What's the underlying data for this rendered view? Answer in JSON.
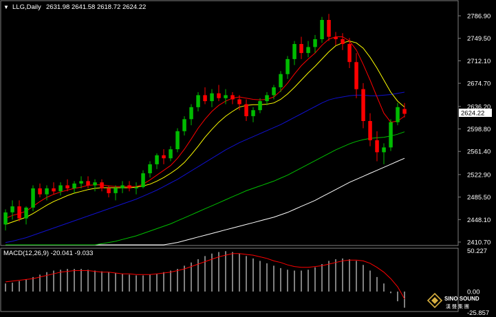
{
  "header": {
    "triangle": "▼",
    "symbol": "LLG,Daily",
    "ohlc": "2631.98 2641.58 2618.72 2624.22"
  },
  "price_axis": {
    "labels": [
      "2786.90",
      "2749.50",
      "2712.10",
      "2674.70",
      "2636.20",
      "2598.80",
      "2561.40",
      "2522.90",
      "2485.50",
      "2448.10",
      "2410.70"
    ],
    "current": "2624.22"
  },
  "macd": {
    "title": "MACD(12,26,9) -20.041 -9.033",
    "labels": [
      "50.227",
      "0.00",
      "-25.857"
    ]
  },
  "logo": {
    "line1": "SINO SOUND",
    "line2": "漢 聲 集 團"
  },
  "colors": {
    "background": "#000000",
    "bull": "#00bb00",
    "bear": "#ff0000",
    "ma_fast": "#ff0000",
    "ma_mid": "#ffff00",
    "ma_blue": "#1010d0",
    "ma_green": "#00c000",
    "ma_white": "#ffffff",
    "macd_hist": "#ffffff",
    "macd_signal": "#ff0000"
  },
  "chart_data": {
    "type": "candlestick",
    "title": "LLG,Daily",
    "ylim": [
      2400,
      2800
    ],
    "candles": [
      {
        "o": 2440,
        "h": 2465,
        "l": 2430,
        "c": 2460
      },
      {
        "o": 2460,
        "h": 2480,
        "l": 2448,
        "c": 2470
      },
      {
        "o": 2470,
        "h": 2480,
        "l": 2445,
        "c": 2450
      },
      {
        "o": 2450,
        "h": 2470,
        "l": 2440,
        "c": 2468
      },
      {
        "o": 2468,
        "h": 2505,
        "l": 2462,
        "c": 2500
      },
      {
        "o": 2500,
        "h": 2508,
        "l": 2485,
        "c": 2490
      },
      {
        "o": 2490,
        "h": 2505,
        "l": 2480,
        "c": 2500
      },
      {
        "o": 2500,
        "h": 2510,
        "l": 2490,
        "c": 2495
      },
      {
        "o": 2495,
        "h": 2510,
        "l": 2488,
        "c": 2505
      },
      {
        "o": 2505,
        "h": 2515,
        "l": 2495,
        "c": 2500
      },
      {
        "o": 2500,
        "h": 2512,
        "l": 2492,
        "c": 2508
      },
      {
        "o": 2508,
        "h": 2520,
        "l": 2500,
        "c": 2512
      },
      {
        "o": 2512,
        "h": 2520,
        "l": 2500,
        "c": 2505
      },
      {
        "o": 2505,
        "h": 2515,
        "l": 2495,
        "c": 2510
      },
      {
        "o": 2510,
        "h": 2515,
        "l": 2495,
        "c": 2500
      },
      {
        "o": 2500,
        "h": 2505,
        "l": 2485,
        "c": 2492
      },
      {
        "o": 2492,
        "h": 2505,
        "l": 2480,
        "c": 2500
      },
      {
        "o": 2500,
        "h": 2512,
        "l": 2492,
        "c": 2505
      },
      {
        "o": 2505,
        "h": 2512,
        "l": 2495,
        "c": 2500
      },
      {
        "o": 2500,
        "h": 2510,
        "l": 2490,
        "c": 2502
      },
      {
        "o": 2502,
        "h": 2530,
        "l": 2500,
        "c": 2525
      },
      {
        "o": 2525,
        "h": 2545,
        "l": 2518,
        "c": 2540
      },
      {
        "o": 2540,
        "h": 2558,
        "l": 2532,
        "c": 2555
      },
      {
        "o": 2555,
        "h": 2565,
        "l": 2540,
        "c": 2550
      },
      {
        "o": 2550,
        "h": 2570,
        "l": 2545,
        "c": 2565
      },
      {
        "o": 2565,
        "h": 2600,
        "l": 2560,
        "c": 2595
      },
      {
        "o": 2595,
        "h": 2620,
        "l": 2588,
        "c": 2615
      },
      {
        "o": 2615,
        "h": 2640,
        "l": 2605,
        "c": 2635
      },
      {
        "o": 2635,
        "h": 2660,
        "l": 2628,
        "c": 2655
      },
      {
        "o": 2655,
        "h": 2668,
        "l": 2640,
        "c": 2645
      },
      {
        "o": 2645,
        "h": 2665,
        "l": 2635,
        "c": 2658
      },
      {
        "o": 2658,
        "h": 2672,
        "l": 2645,
        "c": 2650
      },
      {
        "o": 2650,
        "h": 2665,
        "l": 2640,
        "c": 2655
      },
      {
        "o": 2655,
        "h": 2660,
        "l": 2640,
        "c": 2648
      },
      {
        "o": 2648,
        "h": 2655,
        "l": 2630,
        "c": 2640
      },
      {
        "o": 2640,
        "h": 2648,
        "l": 2612,
        "c": 2620
      },
      {
        "o": 2620,
        "h": 2635,
        "l": 2610,
        "c": 2630
      },
      {
        "o": 2630,
        "h": 2650,
        "l": 2625,
        "c": 2645
      },
      {
        "o": 2645,
        "h": 2660,
        "l": 2638,
        "c": 2655
      },
      {
        "o": 2655,
        "h": 2672,
        "l": 2648,
        "c": 2668
      },
      {
        "o": 2668,
        "h": 2695,
        "l": 2660,
        "c": 2690
      },
      {
        "o": 2690,
        "h": 2720,
        "l": 2682,
        "c": 2715
      },
      {
        "o": 2715,
        "h": 2745,
        "l": 2705,
        "c": 2740
      },
      {
        "o": 2740,
        "h": 2752,
        "l": 2715,
        "c": 2725
      },
      {
        "o": 2725,
        "h": 2745,
        "l": 2718,
        "c": 2735
      },
      {
        "o": 2735,
        "h": 2755,
        "l": 2725,
        "c": 2748
      },
      {
        "o": 2748,
        "h": 2785,
        "l": 2742,
        "c": 2780
      },
      {
        "o": 2780,
        "h": 2790,
        "l": 2745,
        "c": 2752
      },
      {
        "o": 2752,
        "h": 2760,
        "l": 2738,
        "c": 2748
      },
      {
        "o": 2748,
        "h": 2758,
        "l": 2730,
        "c": 2740
      },
      {
        "o": 2740,
        "h": 2750,
        "l": 2700,
        "c": 2710
      },
      {
        "o": 2710,
        "h": 2725,
        "l": 2650,
        "c": 2665
      },
      {
        "o": 2665,
        "h": 2675,
        "l": 2600,
        "c": 2612
      },
      {
        "o": 2612,
        "h": 2625,
        "l": 2570,
        "c": 2580
      },
      {
        "o": 2580,
        "h": 2595,
        "l": 2545,
        "c": 2560
      },
      {
        "o": 2560,
        "h": 2575,
        "l": 2540,
        "c": 2568
      },
      {
        "o": 2568,
        "h": 2615,
        "l": 2562,
        "c": 2610
      },
      {
        "o": 2610,
        "h": 2642,
        "l": 2605,
        "c": 2635
      },
      {
        "o": 2632,
        "h": 2642,
        "l": 2618,
        "c": 2624
      }
    ],
    "ma_fast": [
      2450,
      2455,
      2458,
      2462,
      2470,
      2478,
      2485,
      2490,
      2494,
      2497,
      2500,
      2502,
      2505,
      2506,
      2506,
      2504,
      2503,
      2503,
      2503,
      2503,
      2507,
      2514,
      2522,
      2530,
      2538,
      2550,
      2565,
      2582,
      2600,
      2615,
      2628,
      2638,
      2645,
      2650,
      2652,
      2650,
      2648,
      2647,
      2648,
      2652,
      2662,
      2675,
      2690,
      2704,
      2715,
      2725,
      2738,
      2748,
      2752,
      2752,
      2745,
      2730,
      2706,
      2680,
      2652,
      2625,
      2610,
      2612,
      2620
    ],
    "ma_mid": [
      2440,
      2444,
      2448,
      2452,
      2458,
      2465,
      2472,
      2478,
      2483,
      2488,
      2492,
      2495,
      2498,
      2500,
      2501,
      2501,
      2501,
      2501,
      2501,
      2502,
      2504,
      2507,
      2512,
      2518,
      2525,
      2533,
      2543,
      2556,
      2570,
      2585,
      2598,
      2610,
      2620,
      2628,
      2635,
      2638,
      2639,
      2639,
      2640,
      2642,
      2648,
      2657,
      2668,
      2680,
      2692,
      2703,
      2715,
      2727,
      2737,
      2742,
      2745,
      2742,
      2733,
      2718,
      2700,
      2680,
      2660,
      2645,
      2635
    ],
    "ma_blue": [
      2410,
      2412,
      2415,
      2418,
      2422,
      2426,
      2430,
      2434,
      2438,
      2442,
      2446,
      2450,
      2454,
      2458,
      2462,
      2466,
      2470,
      2474,
      2478,
      2482,
      2487,
      2492,
      2497,
      2503,
      2509,
      2515,
      2522,
      2529,
      2536,
      2543,
      2550,
      2557,
      2564,
      2570,
      2576,
      2581,
      2586,
      2591,
      2596,
      2601,
      2606,
      2612,
      2618,
      2624,
      2630,
      2636,
      2642,
      2647,
      2650,
      2652,
      2654,
      2655,
      2655,
      2654,
      2654,
      2655,
      2656,
      2658,
      2660
    ],
    "ma_green": [
      2380,
      2382,
      2384,
      2386,
      2388,
      2390,
      2392,
      2394,
      2396,
      2398,
      2400,
      2402,
      2404,
      2406,
      2408,
      2410,
      2412,
      2415,
      2418,
      2421,
      2425,
      2429,
      2433,
      2437,
      2441,
      2446,
      2451,
      2456,
      2461,
      2466,
      2471,
      2476,
      2481,
      2486,
      2491,
      2496,
      2500,
      2504,
      2508,
      2512,
      2517,
      2522,
      2528,
      2534,
      2540,
      2546,
      2552,
      2558,
      2564,
      2569,
      2574,
      2578,
      2581,
      2583,
      2584,
      2585,
      2587,
      2590,
      2594
    ],
    "ma_white": [
      2360,
      2362,
      2364,
      2366,
      2368,
      2370,
      2372,
      2374,
      2376,
      2378,
      2380,
      2382,
      2384,
      2386,
      2388,
      2390,
      2392,
      2394,
      2396,
      2398,
      2400,
      2402,
      2404,
      2406,
      2408,
      2410,
      2413,
      2416,
      2419,
      2422,
      2425,
      2428,
      2431,
      2434,
      2437,
      2440,
      2443,
      2446,
      2449,
      2452,
      2456,
      2460,
      2465,
      2470,
      2475,
      2480,
      2486,
      2492,
      2498,
      2504,
      2510,
      2515,
      2520,
      2525,
      2530,
      2535,
      2540,
      2545,
      2550
    ],
    "macd_hist": [
      10,
      11,
      13,
      15,
      18,
      21,
      24,
      26,
      27,
      28,
      28,
      28,
      27,
      26,
      25,
      24,
      23,
      22,
      21,
      20,
      20,
      21,
      22,
      24,
      26,
      28,
      32,
      36,
      40,
      44,
      47,
      49,
      50,
      49,
      47,
      44,
      41,
      38,
      35,
      32,
      29,
      27,
      26,
      26,
      27,
      30,
      34,
      38,
      40,
      41,
      40,
      38,
      33,
      26,
      18,
      10,
      -2,
      -12,
      -20
    ],
    "macd_signal": [
      12,
      13,
      14,
      15,
      16,
      18,
      20,
      22,
      24,
      25,
      26,
      26,
      26,
      25,
      24,
      24,
      23,
      22,
      22,
      21,
      21,
      21,
      22,
      23,
      24,
      26,
      28,
      31,
      34,
      37,
      40,
      43,
      45,
      47,
      47,
      46,
      45,
      43,
      41,
      38,
      36,
      33,
      31,
      30,
      30,
      31,
      32,
      34,
      36,
      38,
      39,
      39,
      38,
      35,
      30,
      24,
      16,
      6,
      -9
    ]
  }
}
